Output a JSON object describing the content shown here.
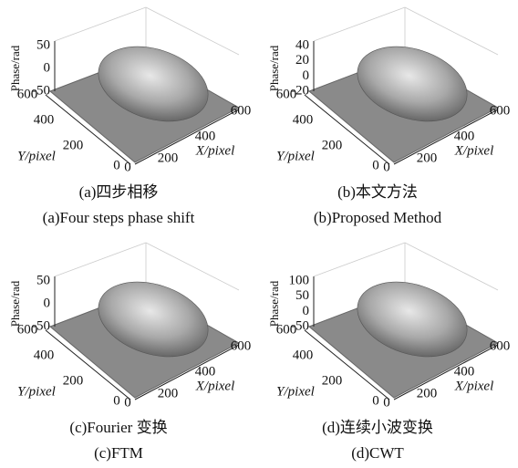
{
  "panels": [
    {
      "z_label": "Phase/rad",
      "z_ticks": [
        50,
        0,
        -50
      ],
      "y_label": "Y/pixel",
      "y_ticks": [
        600,
        400,
        200,
        0
      ],
      "x_label": "X/pixel",
      "x_ticks": [
        0,
        200,
        400,
        600
      ],
      "caption_cn": "(a)四步相移",
      "caption_en": "(a)Four steps phase shift"
    },
    {
      "z_label": "Phase/rad",
      "z_ticks": [
        40,
        20,
        0,
        -20
      ],
      "y_label": "Y/pixel",
      "y_ticks": [
        600,
        400,
        200,
        0
      ],
      "x_label": "X/pixel",
      "x_ticks": [
        0,
        200,
        400,
        600
      ],
      "caption_cn": "(b)本文方法",
      "caption_en": "(b)Proposed Method"
    },
    {
      "z_label": "Phase/rad",
      "z_ticks": [
        50,
        0,
        -50
      ],
      "y_label": "Y/pixel",
      "y_ticks": [
        600,
        400,
        200,
        0
      ],
      "x_label": "X/pixel",
      "x_ticks": [
        0,
        200,
        400,
        600
      ],
      "caption_cn": "(c)Fourier 变换",
      "caption_en": "(c)FTM"
    },
    {
      "z_label": "Phase/rad",
      "z_ticks": [
        100,
        50,
        0,
        -50
      ],
      "y_label": "Y/pixel",
      "y_ticks": [
        600,
        400,
        200,
        0
      ],
      "x_label": "X/pixel",
      "x_ticks": [
        0,
        200,
        400,
        600
      ],
      "caption_cn": "(d)连续小波变换",
      "caption_en": "(d)CWT"
    }
  ]
}
